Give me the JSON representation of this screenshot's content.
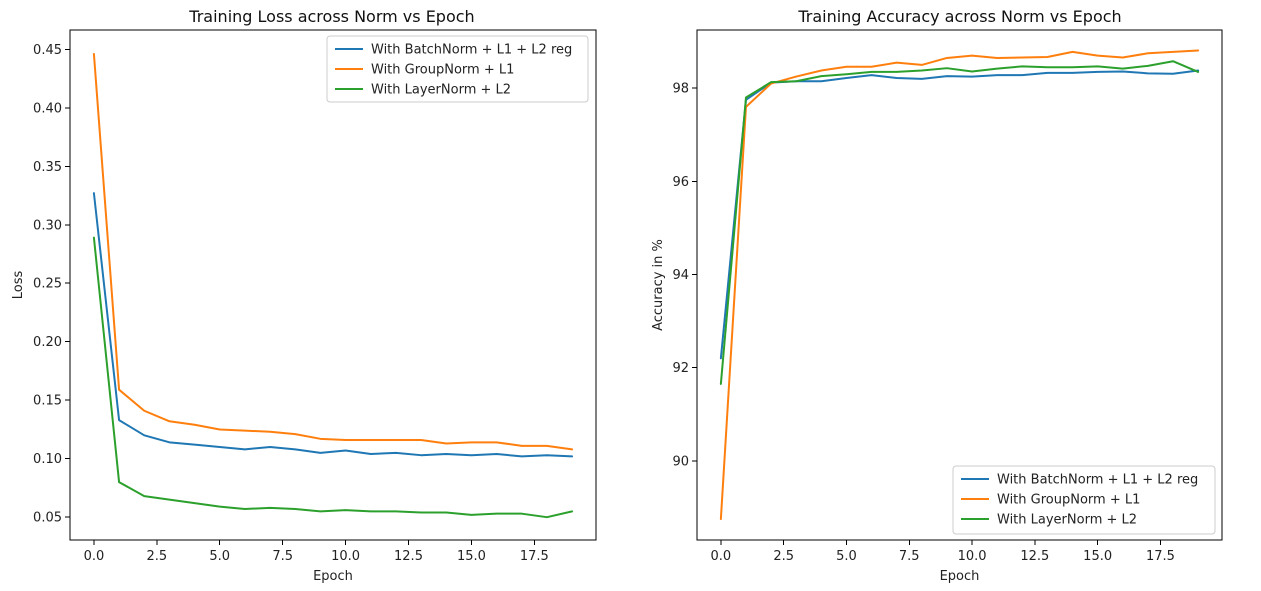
{
  "chart_data": [
    {
      "type": "line",
      "title": "Training Loss across Norm vs Epoch",
      "xlabel": "Epoch",
      "ylabel": "Loss",
      "xlim": [
        -0.95,
        19.95
      ],
      "ylim": [
        0.0305,
        0.4665
      ],
      "xticks": [
        0.0,
        2.5,
        5.0,
        7.5,
        10.0,
        12.5,
        15.0,
        17.5
      ],
      "yticks": [
        0.05,
        0.1,
        0.15,
        0.2,
        0.25,
        0.3,
        0.35,
        0.4,
        0.45
      ],
      "grid": false,
      "legend_position": "top-right",
      "x": [
        0,
        1,
        2,
        3,
        4,
        5,
        6,
        7,
        8,
        9,
        10,
        11,
        12,
        13,
        14,
        15,
        16,
        17,
        18,
        19
      ],
      "series": [
        {
          "name": "With BatchNorm + L1 + L2 reg",
          "color": "#1f77b4",
          "values": [
            0.327,
            0.133,
            0.12,
            0.114,
            0.112,
            0.11,
            0.108,
            0.11,
            0.108,
            0.105,
            0.107,
            0.104,
            0.105,
            0.103,
            0.104,
            0.103,
            0.104,
            0.102,
            0.103,
            0.102
          ]
        },
        {
          "name": "With GroupNorm + L1",
          "color": "#ff7f0e",
          "values": [
            0.446,
            0.159,
            0.141,
            0.132,
            0.129,
            0.125,
            0.124,
            0.123,
            0.121,
            0.117,
            0.116,
            0.116,
            0.116,
            0.116,
            0.113,
            0.114,
            0.114,
            0.111,
            0.111,
            0.108
          ]
        },
        {
          "name": "With LayerNorm + L2",
          "color": "#2ca02c",
          "values": [
            0.289,
            0.08,
            0.068,
            0.065,
            0.062,
            0.059,
            0.057,
            0.058,
            0.057,
            0.055,
            0.056,
            0.055,
            0.055,
            0.054,
            0.054,
            0.052,
            0.053,
            0.053,
            0.05,
            0.055
          ]
        }
      ]
    },
    {
      "type": "line",
      "title": "Training Accuracy across Norm vs Epoch",
      "xlabel": "Epoch",
      "ylabel": "Accuracy in %",
      "xlim": [
        -0.95,
        19.95
      ],
      "ylim": [
        88.3,
        99.25
      ],
      "xticks": [
        0.0,
        2.5,
        5.0,
        7.5,
        10.0,
        12.5,
        15.0,
        17.5
      ],
      "yticks": [
        90,
        92,
        94,
        96,
        98
      ],
      "grid": false,
      "legend_position": "bottom-right",
      "x": [
        0,
        1,
        2,
        3,
        4,
        5,
        6,
        7,
        8,
        9,
        10,
        11,
        12,
        13,
        14,
        15,
        16,
        17,
        18,
        19
      ],
      "series": [
        {
          "name": "With BatchNorm + L1 + L2 reg",
          "color": "#1f77b4",
          "values": [
            92.2,
            97.75,
            98.12,
            98.15,
            98.15,
            98.22,
            98.28,
            98.22,
            98.2,
            98.26,
            98.25,
            98.28,
            98.28,
            98.33,
            98.33,
            98.35,
            98.36,
            98.32,
            98.31,
            98.38
          ]
        },
        {
          "name": "With GroupNorm + L1",
          "color": "#ff7f0e",
          "values": [
            88.75,
            97.6,
            98.1,
            98.25,
            98.38,
            98.46,
            98.46,
            98.55,
            98.5,
            98.65,
            98.7,
            98.65,
            98.66,
            98.67,
            98.78,
            98.7,
            98.66,
            98.75,
            98.78,
            98.81
          ]
        },
        {
          "name": "With LayerNorm + L2",
          "color": "#2ca02c",
          "values": [
            91.65,
            97.8,
            98.13,
            98.15,
            98.26,
            98.3,
            98.35,
            98.35,
            98.38,
            98.43,
            98.36,
            98.42,
            98.47,
            98.45,
            98.45,
            98.47,
            98.42,
            98.48,
            98.58,
            98.35
          ]
        }
      ]
    }
  ]
}
